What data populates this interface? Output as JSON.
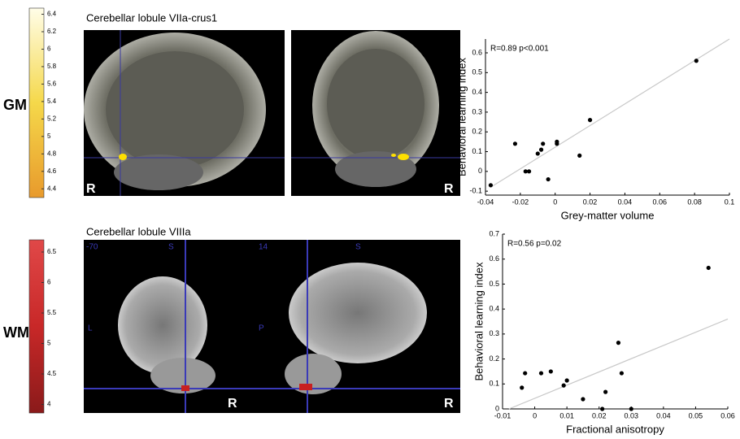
{
  "chart_data": [
    {
      "type": "scatter",
      "annotation": "R=0.89 p<0.001",
      "xlabel": "Grey-matter volume",
      "ylabel": "Behavioral learning index",
      "x": [
        -0.037,
        -0.023,
        -0.017,
        -0.015,
        -0.004,
        -0.01,
        -0.008,
        -0.007,
        0.001,
        0.001,
        0.014,
        0.02,
        0.081
      ],
      "y": [
        -0.07,
        0.14,
        0,
        0,
        -0.04,
        0.09,
        0.11,
        0.14,
        0.14,
        0.15,
        0.08,
        0.26,
        0.56
      ],
      "color": "#000000",
      "trend_line": {
        "x": [
          -0.037,
          0.1
        ],
        "y": [
          -0.08,
          0.67
        ],
        "color": "#c8c8c8"
      },
      "xlim": [
        -0.04,
        0.1
      ],
      "ylim": [
        -0.12,
        0.67
      ],
      "xticks": [
        -0.04,
        -0.02,
        0,
        0.02,
        0.04,
        0.06,
        0.08,
        0.1
      ],
      "yticks": [
        -0.1,
        0,
        0.1,
        0.2,
        0.3,
        0.4,
        0.5,
        0.6
      ]
    },
    {
      "type": "scatter",
      "annotation": "R=0.56 p=0.02",
      "xlabel": "Fractional anisotropy",
      "ylabel": "Behavioral learning index",
      "x": [
        -0.004,
        -0.003,
        0.002,
        0.005,
        0.009,
        0.01,
        0.015,
        0.021,
        0.022,
        0.026,
        0.027,
        0.03,
        0.054
      ],
      "y": [
        0.085,
        0.143,
        0.143,
        0.15,
        0.094,
        0.114,
        0.039,
        0,
        0.068,
        0.265,
        0.143,
        0,
        0.565
      ],
      "color": "#000000",
      "trend_line": {
        "x": [
          -0.008,
          0.06
        ],
        "y": [
          0,
          0.36
        ],
        "color": "#c8c8c8"
      },
      "xlim": [
        -0.01,
        0.06
      ],
      "ylim": [
        0,
        0.7
      ],
      "xticks": [
        -0.01,
        0,
        0.01,
        0.02,
        0.03,
        0.04,
        0.05,
        0.06
      ],
      "yticks": [
        0,
        0.1,
        0.2,
        0.3,
        0.4,
        0.5,
        0.6,
        0.7
      ]
    }
  ],
  "colorbars": [
    {
      "label": "GM",
      "lim": [
        4.3,
        6.47
      ],
      "ticks": [
        4.4,
        4.6,
        4.8,
        5,
        5.2,
        5.4,
        5.6,
        5.8,
        6,
        6.2,
        6.4
      ],
      "colors": [
        "#e89a2c",
        "#f5d84a",
        "#fffde8"
      ]
    },
    {
      "label": "WM",
      "lim": [
        3.86,
        6.7
      ],
      "ticks": [
        4,
        4.5,
        5,
        5.5,
        6,
        6.5
      ],
      "colors": [
        "#8a1a1a",
        "#c82828",
        "#e04848"
      ]
    }
  ],
  "panels": [
    {
      "title": "Cerebellar lobule VIIa-crus1",
      "orientation_labels": [
        "R",
        "R"
      ]
    },
    {
      "title": "Cerebellar lobule VIIIa",
      "orientation_labels": [
        "-70",
        "S",
        "L",
        "R",
        "14",
        "S",
        "P",
        "R"
      ]
    }
  ]
}
